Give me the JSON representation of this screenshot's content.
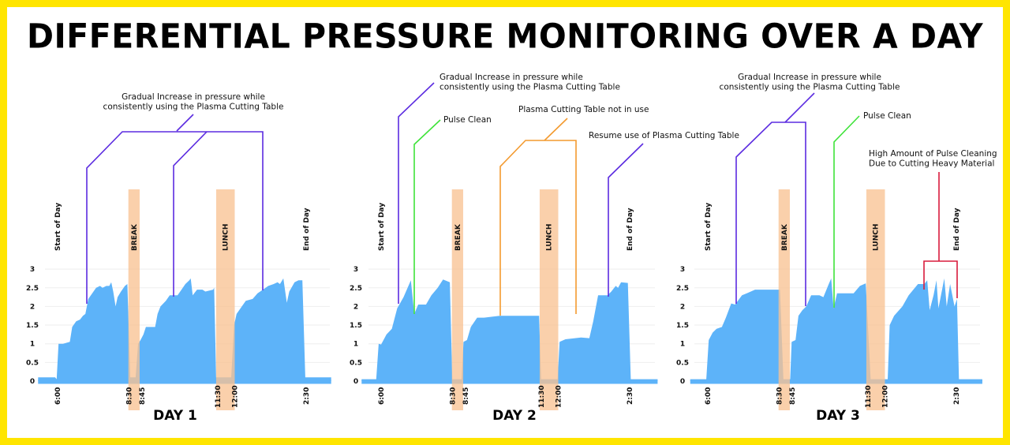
{
  "title": "DIFFERENTIAL PRESSURE MONITORING OVER A DAY",
  "colors": {
    "background": "#FFE500",
    "area": "#5DB3F9",
    "band": "#F8C393",
    "purple": "#5B2BE0",
    "green": "#3FE33A",
    "orange": "#F39A2F",
    "red": "#D81B3C",
    "grid": "#EEEEEE"
  },
  "chart_data": [
    {
      "type": "area",
      "title": "DAY 1",
      "ylim": [
        0,
        3
      ],
      "yticks": [
        "0",
        "0.5",
        "1",
        "1.5",
        "2",
        "2.5",
        "3"
      ],
      "xticks": [
        {
          "time": "6:00",
          "label": "6:00"
        },
        {
          "time": "8:30",
          "label": "8:30"
        },
        {
          "time": "8:45",
          "label": "8:45"
        },
        {
          "time": "11:30",
          "label": "11:30"
        },
        {
          "time": "12:00",
          "label": "12:00"
        },
        {
          "time": "14:30",
          "label": "2:30"
        }
      ],
      "grid": true,
      "markers": [
        {
          "time": "6:00",
          "label": "Start of Day"
        },
        {
          "time": "14:30",
          "label": "End of Day"
        }
      ],
      "bands": [
        {
          "start": "8:30",
          "end": "8:45",
          "label": "BREAK"
        },
        {
          "start": "11:30",
          "end": "12:00",
          "label": "LUNCH"
        }
      ],
      "annotations": [
        {
          "color": "purple",
          "lines": [
            "Gradual Increase in pressure while",
            "consistently using the Plasma Cutting Table"
          ]
        }
      ],
      "series": [
        {
          "points": [
            [
              "5:20",
              0.1
            ],
            [
              "5:55",
              0.1
            ],
            [
              "5:58",
              0.05
            ],
            [
              "6:02",
              1.0
            ],
            [
              "6:11",
              1.0
            ],
            [
              "6:25",
              1.05
            ],
            [
              "6:30",
              1.45
            ],
            [
              "6:38",
              1.6
            ],
            [
              "6:46",
              1.65
            ],
            [
              "6:52",
              1.75
            ],
            [
              "6:57",
              1.8
            ],
            [
              "7:03",
              2.2
            ],
            [
              "7:11",
              2.35
            ],
            [
              "7:19",
              2.5
            ],
            [
              "7:27",
              2.55
            ],
            [
              "7:32",
              2.5
            ],
            [
              "7:40",
              2.55
            ],
            [
              "7:46",
              2.55
            ],
            [
              "7:50",
              2.65
            ],
            [
              "7:54",
              2.4
            ],
            [
              "7:59",
              2.0
            ],
            [
              "8:03",
              2.25
            ],
            [
              "8:10",
              2.4
            ],
            [
              "8:18",
              2.55
            ],
            [
              "8:23",
              2.6
            ],
            [
              "8:29",
              0.1
            ],
            [
              "8:40",
              0.1
            ],
            [
              "8:45",
              1.0
            ],
            [
              "8:50",
              1.1
            ],
            [
              "8:56",
              1.25
            ],
            [
              "9:01",
              1.45
            ],
            [
              "9:20",
              1.45
            ],
            [
              "9:25",
              1.8
            ],
            [
              "9:31",
              2.0
            ],
            [
              "9:42",
              2.15
            ],
            [
              "9:50",
              2.3
            ],
            [
              "10:06",
              2.3
            ],
            [
              "10:14",
              2.45
            ],
            [
              "10:22",
              2.6
            ],
            [
              "10:30",
              2.7
            ],
            [
              "10:33",
              2.75
            ],
            [
              "10:37",
              2.3
            ],
            [
              "10:46",
              2.45
            ],
            [
              "10:57",
              2.45
            ],
            [
              "11:03",
              2.4
            ],
            [
              "11:19",
              2.45
            ],
            [
              "11:21",
              2.5
            ],
            [
              "11:25",
              0.1
            ],
            [
              "11:56",
              0.1
            ],
            [
              "12:02",
              1.5
            ],
            [
              "12:07",
              1.8
            ],
            [
              "12:15",
              1.95
            ],
            [
              "12:26",
              2.15
            ],
            [
              "12:40",
              2.2
            ],
            [
              "12:50",
              2.35
            ],
            [
              "13:01",
              2.45
            ],
            [
              "13:12",
              2.55
            ],
            [
              "13:23",
              2.6
            ],
            [
              "13:31",
              2.65
            ],
            [
              "13:36",
              2.6
            ],
            [
              "13:43",
              2.75
            ],
            [
              "13:50",
              2.1
            ],
            [
              "13:55",
              2.4
            ],
            [
              "14:06",
              2.65
            ],
            [
              "14:14",
              2.7
            ],
            [
              "14:22",
              2.7
            ],
            [
              "14:28",
              0.1
            ],
            [
              "15:21",
              0.1
            ]
          ]
        }
      ]
    },
    {
      "type": "area",
      "title": "DAY 2",
      "ylim": [
        0,
        3
      ],
      "yticks": [
        "0",
        "0.5",
        "1",
        "1.5",
        "2",
        "2.5",
        "3"
      ],
      "xticks": [
        {
          "time": "6:00",
          "label": "6:00"
        },
        {
          "time": "8:30",
          "label": "8:30"
        },
        {
          "time": "8:45",
          "label": "8:45"
        },
        {
          "time": "11:30",
          "label": "11:30"
        },
        {
          "time": "12:00",
          "label": "12:00"
        },
        {
          "time": "14:30",
          "label": "2:30"
        }
      ],
      "grid": true,
      "markers": [
        {
          "time": "6:00",
          "label": "Start of Day"
        },
        {
          "time": "14:30",
          "label": "End of Day"
        }
      ],
      "bands": [
        {
          "start": "8:30",
          "end": "8:45",
          "label": "BREAK"
        },
        {
          "start": "11:30",
          "end": "12:00",
          "label": "LUNCH"
        }
      ],
      "annotations": [
        {
          "color": "purple",
          "lines": [
            "Gradual Increase in pressure while",
            "consistently using the Plasma Cutting Table"
          ]
        },
        {
          "color": "green",
          "lines": [
            "Pulse Clean"
          ]
        },
        {
          "color": "orange",
          "lines": [
            "Plasma Cutting Table not in use"
          ]
        },
        {
          "color": "purple",
          "lines": [
            "Resume use of Plasma Cutting Table"
          ]
        }
      ],
      "series": [
        {
          "points": [
            [
              "5:20",
              0.05
            ],
            [
              "5:50",
              0.05
            ],
            [
              "5:55",
              1.0
            ],
            [
              "6:00",
              0.98
            ],
            [
              "6:11",
              1.25
            ],
            [
              "6:22",
              1.4
            ],
            [
              "6:33",
              1.95
            ],
            [
              "6:46",
              2.25
            ],
            [
              "7:01",
              2.7
            ],
            [
              "7:08",
              1.8
            ],
            [
              "7:16",
              2.05
            ],
            [
              "7:32",
              2.05
            ],
            [
              "7:43",
              2.3
            ],
            [
              "7:56",
              2.5
            ],
            [
              "8:07",
              2.72
            ],
            [
              "8:21",
              2.65
            ],
            [
              "8:26",
              0.05
            ],
            [
              "8:45",
              0.05
            ],
            [
              "8:49",
              1.05
            ],
            [
              "8:56",
              1.1
            ],
            [
              "9:04",
              1.45
            ],
            [
              "9:17",
              1.7
            ],
            [
              "9:31",
              1.7
            ],
            [
              "10:03",
              1.75
            ],
            [
              "11:24",
              1.75
            ],
            [
              "11:28",
              0.05
            ],
            [
              "12:02",
              0.05
            ],
            [
              "12:06",
              1.05
            ],
            [
              "12:18",
              1.12
            ],
            [
              "12:50",
              1.17
            ],
            [
              "13:07",
              1.15
            ],
            [
              "13:15",
              1.6
            ],
            [
              "13:25",
              2.3
            ],
            [
              "13:44",
              2.3
            ],
            [
              "13:52",
              2.4
            ],
            [
              "14:01",
              2.55
            ],
            [
              "14:06",
              2.5
            ],
            [
              "14:12",
              2.65
            ],
            [
              "14:26",
              2.63
            ],
            [
              "14:32",
              0.05
            ],
            [
              "15:27",
              0.05
            ]
          ]
        }
      ]
    },
    {
      "type": "area",
      "title": "DAY 3",
      "ylim": [
        0,
        3
      ],
      "yticks": [
        "0",
        "0.5",
        "1",
        "1.5",
        "2",
        "2.5",
        "3"
      ],
      "xticks": [
        {
          "time": "6:00",
          "label": "6:00"
        },
        {
          "time": "8:30",
          "label": "8:30"
        },
        {
          "time": "8:45",
          "label": "8:45"
        },
        {
          "time": "11:30",
          "label": "11:30"
        },
        {
          "time": "12:00",
          "label": "12:00"
        },
        {
          "time": "14:30",
          "label": "2:30"
        }
      ],
      "grid": true,
      "markers": [
        {
          "time": "6:00",
          "label": "Start of Day"
        },
        {
          "time": "14:30",
          "label": "End of Day"
        }
      ],
      "bands": [
        {
          "start": "8:30",
          "end": "8:45",
          "label": "BREAK"
        },
        {
          "start": "11:30",
          "end": "12:00",
          "label": "LUNCH"
        }
      ],
      "annotations": [
        {
          "color": "purple",
          "lines": [
            "Gradual Increase in pressure while",
            "consistently using the Plasma Cutting Table"
          ]
        },
        {
          "color": "green",
          "lines": [
            "Pulse Clean"
          ]
        },
        {
          "color": "red",
          "lines": [
            "High Amount of Pulse Cleaning",
            "Due to Cutting Heavy Material"
          ]
        }
      ],
      "series": [
        {
          "points": [
            [
              "5:24",
              0.05
            ],
            [
              "5:57",
              0.05
            ],
            [
              "6:02",
              1.1
            ],
            [
              "6:10",
              1.3
            ],
            [
              "6:18",
              1.4
            ],
            [
              "6:29",
              1.45
            ],
            [
              "6:37",
              1.7
            ],
            [
              "6:48",
              2.08
            ],
            [
              "6:56",
              2.05
            ],
            [
              "7:10",
              2.3
            ],
            [
              "7:20",
              2.35
            ],
            [
              "7:37",
              2.45
            ],
            [
              "8:28",
              2.45
            ],
            [
              "8:35",
              0.05
            ],
            [
              "8:49",
              0.05
            ],
            [
              "8:52",
              1.05
            ],
            [
              "9:00",
              1.1
            ],
            [
              "9:06",
              1.75
            ],
            [
              "9:14",
              1.9
            ],
            [
              "9:22",
              2.0
            ],
            [
              "9:32",
              2.3
            ],
            [
              "9:49",
              2.3
            ],
            [
              "9:57",
              2.25
            ],
            [
              "10:08",
              2.6
            ],
            [
              "10:13",
              2.75
            ],
            [
              "10:18",
              1.95
            ],
            [
              "10:25",
              2.35
            ],
            [
              "10:59",
              2.35
            ],
            [
              "11:12",
              2.55
            ],
            [
              "11:24",
              2.62
            ],
            [
              "11:34",
              0.05
            ],
            [
              "12:09",
              0.05
            ],
            [
              "12:13",
              1.5
            ],
            [
              "12:22",
              1.75
            ],
            [
              "12:39",
              2.0
            ],
            [
              "12:52",
              2.3
            ],
            [
              "13:11",
              2.6
            ],
            [
              "13:24",
              2.6
            ],
            [
              "13:30",
              2.7
            ],
            [
              "13:35",
              1.9
            ],
            [
              "13:43",
              2.3
            ],
            [
              "13:49",
              2.7
            ],
            [
              "13:53",
              1.95
            ],
            [
              "14:05",
              2.75
            ],
            [
              "14:10",
              2.0
            ],
            [
              "14:17",
              2.6
            ],
            [
              "14:26",
              2.0
            ],
            [
              "14:31",
              2.2
            ],
            [
              "14:35",
              0.05
            ],
            [
              "15:23",
              0.05
            ]
          ]
        }
      ]
    }
  ]
}
